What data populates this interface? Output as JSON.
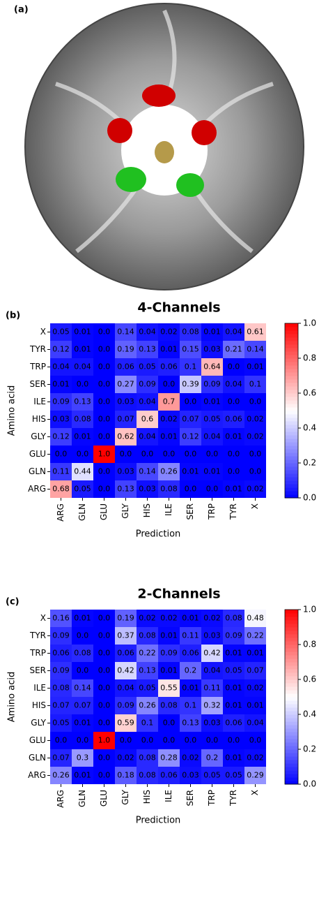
{
  "image_panel": {
    "label": "(a)"
  },
  "chart_data": [
    {
      "type": "heatmap",
      "panel_label": "(b)",
      "title": "4-Channels",
      "x_label": "Prediction",
      "y_label": "Amino acid",
      "x_categories": [
        "ARG",
        "GLN",
        "GLU",
        "GLY",
        "HIS",
        "ILE",
        "SER",
        "TRP",
        "TYR",
        "X"
      ],
      "y_categories": [
        "X",
        "TYR",
        "TRP",
        "SER",
        "ILE",
        "HIS",
        "GLY",
        "GLU",
        "GLN",
        "ARG"
      ],
      "values": [
        [
          0.05,
          0.01,
          0.0,
          0.14,
          0.04,
          0.02,
          0.08,
          0.01,
          0.04,
          0.61
        ],
        [
          0.12,
          0.01,
          0.0,
          0.19,
          0.13,
          0.01,
          0.15,
          0.03,
          0.21,
          0.14
        ],
        [
          0.04,
          0.04,
          0.0,
          0.06,
          0.05,
          0.06,
          0.1,
          0.64,
          0.0,
          0.01
        ],
        [
          0.01,
          0.0,
          0.0,
          0.27,
          0.09,
          0.0,
          0.39,
          0.09,
          0.04,
          0.1
        ],
        [
          0.09,
          0.13,
          0.0,
          0.03,
          0.04,
          0.7,
          0.0,
          0.01,
          0.0,
          0.0
        ],
        [
          0.03,
          0.08,
          0.0,
          0.07,
          0.6,
          0.02,
          0.07,
          0.05,
          0.06,
          0.02
        ],
        [
          0.12,
          0.01,
          0.0,
          0.62,
          0.04,
          0.01,
          0.12,
          0.04,
          0.01,
          0.02
        ],
        [
          0.0,
          0.0,
          1.0,
          0.0,
          0.0,
          0.0,
          0.0,
          0.0,
          0.0,
          0.0
        ],
        [
          0.11,
          0.44,
          0.0,
          0.03,
          0.14,
          0.26,
          0.01,
          0.01,
          0.0,
          0.0
        ],
        [
          0.68,
          0.05,
          0.0,
          0.13,
          0.03,
          0.08,
          0.0,
          0.0,
          0.01,
          0.02
        ]
      ],
      "value_labels": [
        [
          "0.05",
          "0.01",
          "0.0",
          "0.14",
          "0.04",
          "0.02",
          "0.08",
          "0.01",
          "0.04",
          "0.61"
        ],
        [
          "0.12",
          "0.01",
          "0.0",
          "0.19",
          "0.13",
          "0.01",
          "0.15",
          "0.03",
          "0.21",
          "0.14"
        ],
        [
          "0.04",
          "0.04",
          "0.0",
          "0.06",
          "0.05",
          "0.06",
          "0.1",
          "0.64",
          "0.0",
          "0.01"
        ],
        [
          "0.01",
          "0.0",
          "0.0",
          "0.27",
          "0.09",
          "0.0",
          "0.39",
          "0.09",
          "0.04",
          "0.1"
        ],
        [
          "0.09",
          "0.13",
          "0.0",
          "0.03",
          "0.04",
          "0.7",
          "0.0",
          "0.01",
          "0.0",
          "0.0"
        ],
        [
          "0.03",
          "0.08",
          "0.0",
          "0.07",
          "0.6",
          "0.02",
          "0.07",
          "0.05",
          "0.06",
          "0.02"
        ],
        [
          "0.12",
          "0.01",
          "0.0",
          "0.62",
          "0.04",
          "0.01",
          "0.12",
          "0.04",
          "0.01",
          "0.02"
        ],
        [
          "0.0",
          "0.0",
          "1.0",
          "0.0",
          "0.0",
          "0.0",
          "0.0",
          "0.0",
          "0.0",
          "0.0"
        ],
        [
          "0.11",
          "0.44",
          "0.0",
          "0.03",
          "0.14",
          "0.26",
          "0.01",
          "0.01",
          "0.0",
          "0.0"
        ],
        [
          "0.68",
          "0.05",
          "0.0",
          "0.13",
          "0.03",
          "0.08",
          "0.0",
          "0.0",
          "0.01",
          "0.02"
        ]
      ],
      "colorbar": {
        "lim": [
          0,
          1
        ],
        "colors": [
          "#0000ff",
          "#ffffff",
          "#ff0000"
        ],
        "ticks": [
          {
            "value": 0,
            "label": "0.0"
          },
          0.2,
          0.4,
          0.6,
          0.8,
          {
            "value": 1,
            "label": "1.0"
          }
        ]
      }
    },
    {
      "type": "heatmap",
      "panel_label": "(c)",
      "title": "2-Channels",
      "x_label": "Prediction",
      "y_label": "Amino acid",
      "x_categories": [
        "ARG",
        "GLN",
        "GLU",
        "GLY",
        "HIS",
        "ILE",
        "SER",
        "TRP",
        "TYR",
        "X"
      ],
      "y_categories": [
        "X",
        "TYR",
        "TRP",
        "SER",
        "ILE",
        "HIS",
        "GLY",
        "GLU",
        "GLN",
        "ARG"
      ],
      "values": [
        [
          0.16,
          0.01,
          0.0,
          0.19,
          0.02,
          0.02,
          0.01,
          0.02,
          0.08,
          0.48
        ],
        [
          0.09,
          0.0,
          0.0,
          0.37,
          0.08,
          0.01,
          0.11,
          0.03,
          0.09,
          0.22
        ],
        [
          0.06,
          0.08,
          0.0,
          0.06,
          0.22,
          0.09,
          0.06,
          0.42,
          0.01,
          0.01
        ],
        [
          0.09,
          0.0,
          0.0,
          0.42,
          0.13,
          0.01,
          0.2,
          0.04,
          0.05,
          0.07
        ],
        [
          0.08,
          0.14,
          0.0,
          0.04,
          0.05,
          0.55,
          0.01,
          0.11,
          0.01,
          0.02
        ],
        [
          0.07,
          0.07,
          0.0,
          0.09,
          0.26,
          0.08,
          0.1,
          0.32,
          0.01,
          0.01
        ],
        [
          0.05,
          0.01,
          0.0,
          0.59,
          0.1,
          0.0,
          0.13,
          0.03,
          0.06,
          0.04
        ],
        [
          0.0,
          0.0,
          1.0,
          0.0,
          0.0,
          0.0,
          0.0,
          0.0,
          0.0,
          0.0
        ],
        [
          0.07,
          0.3,
          0.0,
          0.02,
          0.08,
          0.28,
          0.02,
          0.2,
          0.01,
          0.02
        ],
        [
          0.26,
          0.01,
          0.0,
          0.18,
          0.08,
          0.06,
          0.03,
          0.05,
          0.05,
          0.29
        ]
      ],
      "value_labels": [
        [
          "0.16",
          "0.01",
          "0.0",
          "0.19",
          "0.02",
          "0.02",
          "0.01",
          "0.02",
          "0.08",
          "0.48"
        ],
        [
          "0.09",
          "0.0",
          "0.0",
          "0.37",
          "0.08",
          "0.01",
          "0.11",
          "0.03",
          "0.09",
          "0.22"
        ],
        [
          "0.06",
          "0.08",
          "0.0",
          "0.06",
          "0.22",
          "0.09",
          "0.06",
          "0.42",
          "0.01",
          "0.01"
        ],
        [
          "0.09",
          "0.0",
          "0.0",
          "0.42",
          "0.13",
          "0.01",
          "0.2",
          "0.04",
          "0.05",
          "0.07"
        ],
        [
          "0.08",
          "0.14",
          "0.0",
          "0.04",
          "0.05",
          "0.55",
          "0.01",
          "0.11",
          "0.01",
          "0.02"
        ],
        [
          "0.07",
          "0.07",
          "0.0",
          "0.09",
          "0.26",
          "0.08",
          "0.1",
          "0.32",
          "0.01",
          "0.01"
        ],
        [
          "0.05",
          "0.01",
          "0.0",
          "0.59",
          "0.1",
          "0.0",
          "0.13",
          "0.03",
          "0.06",
          "0.04"
        ],
        [
          "0.0",
          "0.0",
          "1.0",
          "0.0",
          "0.0",
          "0.0",
          "0.0",
          "0.0",
          "0.0",
          "0.0"
        ],
        [
          "0.07",
          "0.3",
          "0.0",
          "0.02",
          "0.08",
          "0.28",
          "0.02",
          "0.2",
          "0.01",
          "0.02"
        ],
        [
          "0.26",
          "0.01",
          "0.0",
          "0.18",
          "0.08",
          "0.06",
          "0.03",
          "0.05",
          "0.05",
          "0.29"
        ]
      ],
      "colorbar": {
        "lim": [
          0,
          1
        ],
        "colors": [
          "#0000ff",
          "#ffffff",
          "#ff0000"
        ],
        "ticks": [
          {
            "value": 0,
            "label": "0.0"
          },
          0.2,
          0.4,
          0.6,
          0.8,
          {
            "value": 1,
            "label": "1.0"
          }
        ]
      }
    }
  ]
}
